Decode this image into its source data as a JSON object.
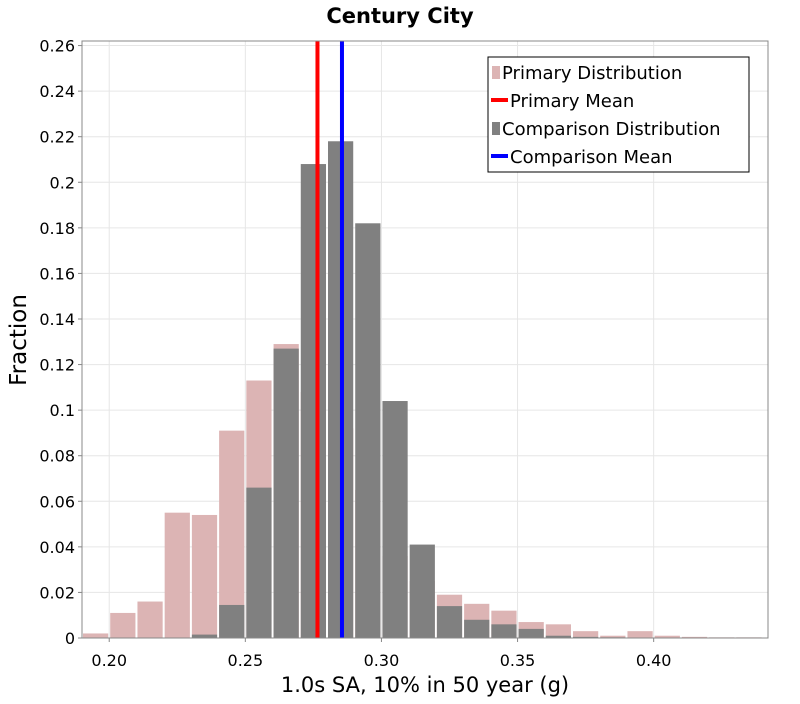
{
  "chart_data": {
    "type": "bar",
    "title": "Century City",
    "xlabel": "1.0s SA, 10% in 50 year (g)",
    "ylabel": "Fraction",
    "xlim": [
      0.19,
      0.442
    ],
    "ylim": [
      0,
      0.262
    ],
    "grid": true,
    "legend_position": "top-right",
    "bin_width": 0.01,
    "x_ticks": [
      {
        "value": 0.2,
        "label": "0.20"
      },
      {
        "value": 0.25,
        "label": "0.25"
      },
      {
        "value": 0.3,
        "label": "0.30"
      },
      {
        "value": 0.35,
        "label": "0.35"
      },
      {
        "value": 0.4,
        "label": "0.40"
      }
    ],
    "y_ticks": [
      {
        "value": 0,
        "label": "0"
      },
      {
        "value": 0.02,
        "label": "0.02"
      },
      {
        "value": 0.04,
        "label": "0.04"
      },
      {
        "value": 0.06,
        "label": "0.06"
      },
      {
        "value": 0.08,
        "label": "0.08"
      },
      {
        "value": 0.1,
        "label": "0.1"
      },
      {
        "value": 0.12,
        "label": "0.12"
      },
      {
        "value": 0.14,
        "label": "0.14"
      },
      {
        "value": 0.16,
        "label": "0.16"
      },
      {
        "value": 0.18,
        "label": "0.18"
      },
      {
        "value": 0.2,
        "label": "0.2"
      },
      {
        "value": 0.22,
        "label": "0.22"
      },
      {
        "value": 0.24,
        "label": "0.24"
      },
      {
        "value": 0.26,
        "label": "0.26"
      }
    ],
    "series": [
      {
        "name": "Primary Distribution",
        "kind": "histogram",
        "color": "#dcb4b4",
        "bins": [
          {
            "x": 0.19,
            "y": 0.002
          },
          {
            "x": 0.2,
            "y": 0.011
          },
          {
            "x": 0.21,
            "y": 0.016
          },
          {
            "x": 0.22,
            "y": 0.055
          },
          {
            "x": 0.23,
            "y": 0.054
          },
          {
            "x": 0.24,
            "y": 0.091
          },
          {
            "x": 0.25,
            "y": 0.113
          },
          {
            "x": 0.26,
            "y": 0.129
          },
          {
            "x": 0.27,
            "y": 0.108
          },
          {
            "x": 0.28,
            "y": 0.092
          },
          {
            "x": 0.29,
            "y": 0.065
          },
          {
            "x": 0.3,
            "y": 0.036
          },
          {
            "x": 0.31,
            "y": 0.025
          },
          {
            "x": 0.32,
            "y": 0.019
          },
          {
            "x": 0.33,
            "y": 0.015
          },
          {
            "x": 0.34,
            "y": 0.012
          },
          {
            "x": 0.35,
            "y": 0.007
          },
          {
            "x": 0.36,
            "y": 0.006
          },
          {
            "x": 0.37,
            "y": 0.003
          },
          {
            "x": 0.38,
            "y": 0.001
          },
          {
            "x": 0.39,
            "y": 0.003
          },
          {
            "x": 0.4,
            "y": 0.001
          },
          {
            "x": 0.41,
            "y": 0.0005
          },
          {
            "x": 0.42,
            "y": 0.0003
          },
          {
            "x": 0.43,
            "y": 0.0003
          }
        ]
      },
      {
        "name": "Primary Mean",
        "kind": "vline",
        "color": "#ff0000",
        "value": 0.2765
      },
      {
        "name": "Comparison Distribution",
        "kind": "histogram",
        "color": "#808080",
        "bins": [
          {
            "x": 0.23,
            "y": 0.0015
          },
          {
            "x": 0.24,
            "y": 0.0145
          },
          {
            "x": 0.25,
            "y": 0.066
          },
          {
            "x": 0.26,
            "y": 0.127
          },
          {
            "x": 0.27,
            "y": 0.208
          },
          {
            "x": 0.28,
            "y": 0.218
          },
          {
            "x": 0.29,
            "y": 0.182
          },
          {
            "x": 0.3,
            "y": 0.104
          },
          {
            "x": 0.31,
            "y": 0.041
          },
          {
            "x": 0.32,
            "y": 0.014
          },
          {
            "x": 0.33,
            "y": 0.008
          },
          {
            "x": 0.34,
            "y": 0.006
          },
          {
            "x": 0.35,
            "y": 0.004
          },
          {
            "x": 0.36,
            "y": 0.001
          },
          {
            "x": 0.37,
            "y": 0.0005
          },
          {
            "x": 0.38,
            "y": 0.0003
          }
        ]
      },
      {
        "name": "Comparison Mean",
        "kind": "vline",
        "color": "#0000ff",
        "value": 0.2855
      }
    ]
  }
}
